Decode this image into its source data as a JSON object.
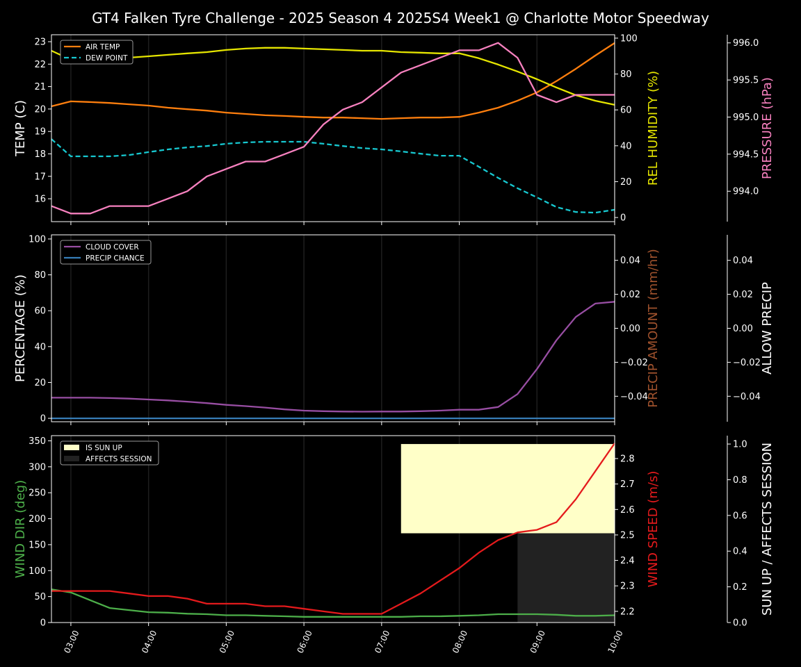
{
  "chart_data": {
    "type": "line",
    "title": "GT4 Falken Tyre Challenge - 2025 Season 4 2025S4 Week1 @ Charlotte Motor Speedway",
    "x": [
      "02:45",
      "03:00",
      "03:15",
      "03:30",
      "03:45",
      "04:00",
      "04:15",
      "04:30",
      "04:45",
      "05:00",
      "05:15",
      "05:30",
      "05:45",
      "06:00",
      "06:15",
      "06:30",
      "06:45",
      "07:00",
      "07:15",
      "07:30",
      "07:45",
      "08:00",
      "08:15",
      "08:30",
      "08:45",
      "09:00",
      "09:15",
      "09:30",
      "09:45",
      "10:00"
    ],
    "x_tick_labels": [
      "03:00",
      "04:00",
      "05:00",
      "06:00",
      "07:00",
      "08:00",
      "09:00",
      "10:00"
    ],
    "grid": "vertical at hour ticks",
    "panels": [
      {
        "axes": [
          {
            "id": "temp",
            "side": "left",
            "label": "TEMP (C)",
            "color": "#ffffff",
            "range": [
              14.98,
              23.31
            ],
            "ticks": [
              16,
              17,
              18,
              19,
              20,
              21,
              22,
              23
            ],
            "tick_labels": [
              "16",
              "17",
              "18",
              "19",
              "20",
              "21",
              "22",
              "23"
            ]
          },
          {
            "id": "hum",
            "side": "right",
            "label": "REL HUMIDITY (%)",
            "color": "#e5e500",
            "range": [
              -2.3,
              101.9
            ],
            "ticks": [
              0,
              20,
              40,
              60,
              80,
              100
            ],
            "tick_labels": [
              "0",
              "20",
              "40",
              "60",
              "80",
              "100"
            ]
          },
          {
            "id": "pres",
            "side": "right2",
            "label": "PRESSURE (hPa)",
            "color": "#f781bf",
            "range": [
              993.59,
              996.11
            ],
            "ticks": [
              994,
              994.5,
              995,
              995.5,
              996
            ],
            "tick_labels": [
              "994.0",
              "994.5",
              "995.0",
              "995.5",
              "996.0"
            ]
          }
        ],
        "legend": {
          "placement": "top-left",
          "entries": [
            "AIR TEMP",
            "DEW POINT"
          ]
        },
        "series": [
          {
            "name": "AIR TEMP",
            "axis": "temp",
            "color": "#ff7f0e",
            "dash": false,
            "values": [
              20.12,
              20.34,
              20.31,
              20.27,
              20.21,
              20.15,
              20.06,
              19.99,
              19.93,
              19.84,
              19.78,
              19.72,
              19.69,
              19.65,
              19.62,
              19.62,
              19.59,
              19.56,
              19.59,
              19.62,
              19.62,
              19.65,
              19.84,
              20.06,
              20.37,
              20.74,
              21.24,
              21.79,
              22.38,
              22.94
            ]
          },
          {
            "name": "DEW POINT",
            "axis": "temp",
            "color": "#17c8d0",
            "dash": true,
            "values": [
              18.66,
              17.89,
              17.89,
              17.89,
              17.95,
              18.08,
              18.2,
              18.29,
              18.35,
              18.45,
              18.51,
              18.54,
              18.54,
              18.54,
              18.45,
              18.35,
              18.26,
              18.2,
              18.11,
              18.01,
              17.92,
              17.92,
              17.43,
              16.93,
              16.47,
              16.06,
              15.63,
              15.41,
              15.38,
              15.51
            ]
          },
          {
            "axis": "hum",
            "color": "#e5e500",
            "dash": false,
            "values": [
              93.0,
              88.0,
              88.0,
              88.4,
              89.1,
              89.9,
              90.7,
              91.5,
              92.2,
              93.4,
              94.2,
              94.6,
              94.6,
              94.2,
              93.8,
              93.4,
              93.0,
              93.0,
              92.2,
              91.9,
              91.5,
              91.5,
              88.8,
              85.3,
              81.4,
              77.1,
              72.5,
              68.2,
              65.1,
              62.8
            ]
          },
          {
            "axis": "pres",
            "color": "#f781bf",
            "dash": false,
            "values": [
              993.8,
              993.7,
              993.7,
              993.8,
              993.8,
              993.8,
              993.9,
              994.0,
              994.2,
              994.3,
              994.4,
              994.4,
              994.5,
              994.6,
              994.9,
              995.1,
              995.2,
              995.4,
              995.6,
              995.7,
              995.8,
              995.9,
              995.9,
              996.0,
              995.8,
              995.3,
              995.2,
              995.3,
              995.3,
              995.3
            ]
          }
        ]
      },
      {
        "axes": [
          {
            "id": "pct",
            "side": "left",
            "label": "PERCENTAGE (%)",
            "color": "#ffffff",
            "range": [
              -1.9,
              102.3
            ],
            "ticks": [
              0,
              20,
              40,
              60,
              80,
              100
            ],
            "tick_labels": [
              "0",
              "20",
              "40",
              "60",
              "80",
              "100"
            ]
          },
          {
            "id": "pamt",
            "side": "right",
            "label": "PRECIP AMOUNT (mm/hr)",
            "color": "#a0522d",
            "range": [
              -0.055,
              0.055
            ],
            "ticks": [
              -0.04,
              -0.02,
              0,
              0.02,
              0.04
            ],
            "tick_labels": [
              "−0.04",
              "−0.02",
              "0.00",
              "0.02",
              "0.04"
            ]
          },
          {
            "id": "allow",
            "side": "right2",
            "label": "ALLOW PRECIP",
            "color": "#ffffff",
            "range": [
              -0.055,
              0.055
            ],
            "ticks": [
              -0.04,
              -0.02,
              0,
              0.02,
              0.04
            ],
            "tick_labels": [
              "−0.04",
              "−0.02",
              "0.00",
              "0.02",
              "0.04"
            ]
          }
        ],
        "legend": {
          "placement": "top-left",
          "entries": [
            "CLOUD COVER",
            "PRECIP CHANCE"
          ]
        },
        "series": [
          {
            "name": "CLOUD COVER",
            "axis": "pct",
            "color": "#984ea3",
            "dash": false,
            "values": [
              11.5,
              11.5,
              11.5,
              11.3,
              11.0,
              10.5,
              10.0,
              9.3,
              8.5,
              7.5,
              6.8,
              6.0,
              5.0,
              4.3,
              4.0,
              3.8,
              3.7,
              3.8,
              3.8,
              4.0,
              4.3,
              4.8,
              4.8,
              6.3,
              13.5,
              27.5,
              43.5,
              56.5,
              64.0,
              65.0
            ]
          },
          {
            "name": "PRECIP CHANCE",
            "axis": "pct",
            "color": "#377eb8",
            "dash": false,
            "values": [
              0,
              0,
              0,
              0,
              0,
              0,
              0,
              0,
              0,
              0,
              0,
              0,
              0,
              0,
              0,
              0,
              0,
              0,
              0,
              0,
              0,
              0,
              0,
              0,
              0,
              0,
              0,
              0,
              0,
              0
            ]
          }
        ]
      },
      {
        "axes": [
          {
            "id": "wdir",
            "side": "left",
            "label": "WIND DIR (deg)",
            "color": "#4daf4a",
            "range": [
              0,
              360
            ],
            "ticks": [
              0,
              50,
              100,
              150,
              200,
              250,
              300,
              350
            ],
            "tick_labels": [
              "0",
              "50",
              "100",
              "150",
              "200",
              "250",
              "300",
              "350"
            ]
          },
          {
            "id": "wspd",
            "side": "right",
            "label": "WIND SPEED (m/s)",
            "color": "#e41a1c",
            "range": [
              2.156,
              2.89
            ],
            "ticks": [
              2.2,
              2.3,
              2.4,
              2.5,
              2.6,
              2.7,
              2.8
            ],
            "tick_labels": [
              "2.2",
              "2.3",
              "2.4",
              "2.5",
              "2.6",
              "2.7",
              "2.8"
            ]
          },
          {
            "id": "sun",
            "side": "right2",
            "label": "SUN UP / AFFECTS SESSION",
            "color": "#ffffff",
            "range": [
              0,
              1.047
            ],
            "ticks": [
              0,
              0.2,
              0.4,
              0.6,
              0.8,
              1.0
            ],
            "tick_labels": [
              "0.0",
              "0.2",
              "0.4",
              "0.6",
              "0.8",
              "1.0"
            ]
          }
        ],
        "legend": {
          "placement": "top-left",
          "entries": [
            "IS SUN UP",
            "AFFECTS SESSION"
          ]
        },
        "series": [
          {
            "name": "IS SUN UP",
            "axis": "sun",
            "type": "bar",
            "color": "#ffffc8",
            "values": [
              0,
              0,
              0,
              0,
              0,
              0,
              0,
              0,
              0,
              0,
              0,
              0,
              0,
              0,
              0,
              0,
              0,
              0,
              1,
              1,
              1,
              1,
              1,
              1,
              1,
              1,
              1,
              1,
              1,
              1
            ]
          },
          {
            "name": "AFFECTS SESSION",
            "axis": "sun",
            "type": "bar",
            "color": "#222222",
            "values": [
              0,
              0,
              0,
              0,
              0,
              0,
              0,
              0,
              0,
              0,
              0,
              0,
              0,
              0,
              0,
              0,
              0,
              0,
              0,
              0,
              0,
              0,
              0,
              0,
              1,
              1,
              1,
              1,
              1,
              1
            ]
          },
          {
            "axis": "wdir",
            "color": "#4daf4a",
            "dash": false,
            "values": [
              64,
              58,
              43,
              28,
              24,
              20,
              19,
              17,
              16,
              14,
              14,
              13,
              12,
              11,
              11,
              11,
              11,
              11,
              11,
              12,
              12,
              13,
              14,
              16,
              16,
              16,
              15,
              13,
              13,
              14
            ]
          },
          {
            "axis": "wspd",
            "color": "#e41a1c",
            "dash": false,
            "values": [
              2.28,
              2.28,
              2.28,
              2.28,
              2.27,
              2.26,
              2.26,
              2.25,
              2.23,
              2.23,
              2.23,
              2.22,
              2.22,
              2.21,
              2.2,
              2.19,
              2.19,
              2.19,
              2.23,
              2.27,
              2.32,
              2.37,
              2.43,
              2.48,
              2.51,
              2.52,
              2.55,
              2.64,
              2.75,
              2.86
            ]
          }
        ]
      }
    ]
  }
}
